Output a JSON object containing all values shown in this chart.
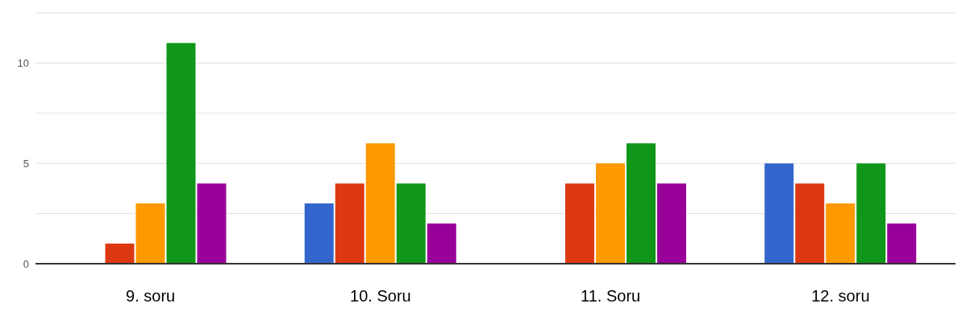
{
  "chart_data": {
    "type": "bar",
    "categories": [
      "9. soru",
      "10. Soru",
      "11. Soru",
      "12. soru"
    ],
    "series": [
      {
        "color": "#3366cc",
        "values": [
          0,
          3,
          0,
          5
        ]
      },
      {
        "color": "#dc3912",
        "values": [
          1,
          4,
          4,
          4
        ]
      },
      {
        "color": "#ff9900",
        "values": [
          3,
          6,
          5,
          3
        ]
      },
      {
        "color": "#109618",
        "values": [
          11,
          4,
          6,
          5
        ]
      },
      {
        "color": "#990099",
        "values": [
          4,
          2,
          4,
          2
        ]
      }
    ],
    "ylim": [
      0,
      12.5
    ],
    "yticks": [
      0,
      {
        "value": 2.5,
        "label": null
      },
      5,
      {
        "value": 7.5,
        "label": null
      },
      10,
      {
        "value": 12.5,
        "label": null
      }
    ],
    "grid": "y",
    "legend": false
  }
}
